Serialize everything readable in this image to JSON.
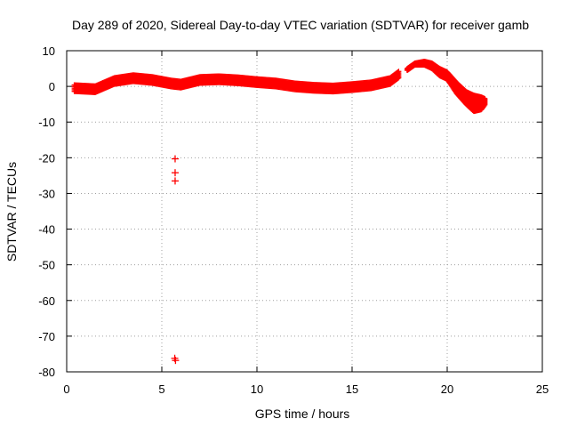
{
  "chart_data": {
    "type": "scatter",
    "title": "Day 289 of 2020, Sidereal Day-to-day VTEC variation (SDTVAR) for receiver gamb",
    "xlabel": "GPS time / hours",
    "ylabel": "SDTVAR / TECUs",
    "xlim": [
      0,
      25
    ],
    "ylim": [
      -80,
      10
    ],
    "x_ticks": [
      0,
      5,
      10,
      15,
      20,
      25
    ],
    "y_ticks": [
      10,
      0,
      -10,
      -20,
      -30,
      -40,
      -50,
      -60,
      -70,
      -80
    ],
    "grid": true,
    "marker": "+",
    "series_color": "#ff0000",
    "series": [
      {
        "name": "SDTVAR",
        "band_x": [
          0.4,
          1.5,
          2.5,
          3.5,
          4.5,
          5.5,
          6.0,
          7.0,
          8.0,
          9.0,
          10.0,
          11.0,
          12.0,
          13.0,
          14.0,
          15.0,
          16.0,
          17.0,
          17.5
        ],
        "band_y": [
          -0.5,
          -0.8,
          1.5,
          2.3,
          1.8,
          0.8,
          0.5,
          1.8,
          2.0,
          1.7,
          1.2,
          0.8,
          0.0,
          -0.4,
          -0.6,
          -0.2,
          0.3,
          1.5,
          3.5
        ],
        "band_halfwidth": 0.9,
        "late_x": [
          17.9,
          18.3,
          18.8,
          19.2,
          19.6,
          20.0,
          20.5,
          21.0,
          21.4,
          21.8,
          22.0
        ],
        "late_y_upper": [
          5.0,
          6.5,
          7.0,
          6.5,
          5.0,
          4.0,
          1.0,
          -1.5,
          -2.5,
          -3.0,
          -3.5
        ],
        "late_y_lower": [
          4.5,
          6.0,
          6.0,
          5.0,
          3.0,
          2.0,
          -2.0,
          -5.0,
          -7.0,
          -6.5,
          -5.0
        ],
        "outlier_x": [
          5.7,
          5.7,
          5.7,
          5.68,
          5.72
        ],
        "outlier_y": [
          -20.3,
          -24.2,
          -26.5,
          -76.2,
          -76.8
        ]
      }
    ]
  }
}
